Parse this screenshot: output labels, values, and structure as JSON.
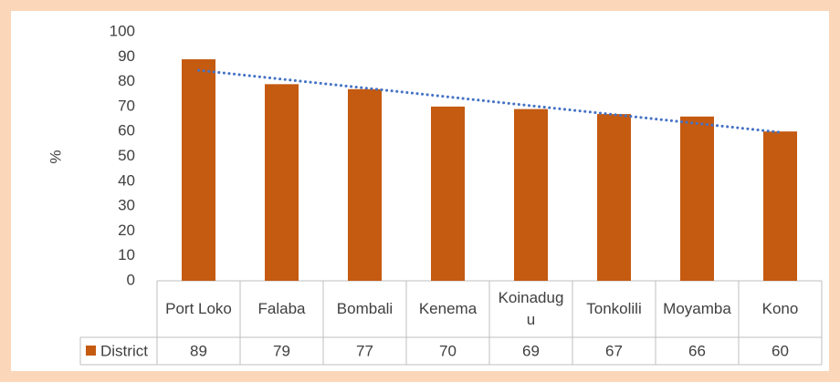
{
  "chart_data": {
    "type": "bar",
    "y_label": "%",
    "categories": [
      "Port Loko",
      "Falaba",
      "Bombali",
      "Kenema",
      "Koinadugu",
      "Tonkolili",
      "Moyamba",
      "Kono"
    ],
    "series": [
      {
        "name": "District",
        "color": "#c55a11",
        "values": [
          89,
          79,
          77,
          70,
          69,
          67,
          66,
          60
        ]
      }
    ],
    "ylim": [
      0,
      100
    ],
    "yticks": [
      0,
      10,
      20,
      30,
      40,
      50,
      60,
      70,
      80,
      90,
      100
    ],
    "trendline": {
      "type": "linear",
      "color": "#4472c4"
    },
    "grid": false,
    "data_table": true
  }
}
